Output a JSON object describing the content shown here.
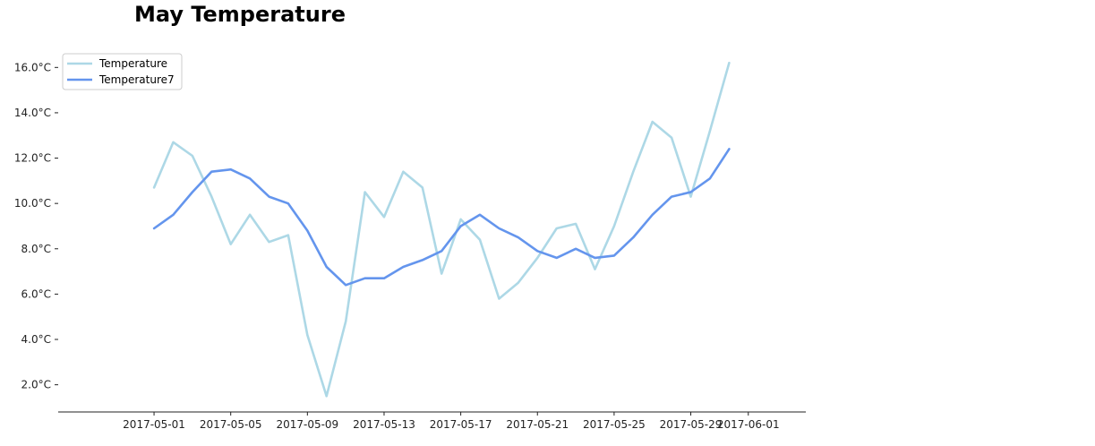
{
  "chart_data": {
    "type": "line",
    "title": "May Temperature",
    "xlabel": "",
    "ylabel": "",
    "x": [
      "2017-05-01",
      "2017-05-02",
      "2017-05-03",
      "2017-05-04",
      "2017-05-05",
      "2017-05-06",
      "2017-05-07",
      "2017-05-08",
      "2017-05-09",
      "2017-05-10",
      "2017-05-11",
      "2017-05-12",
      "2017-05-13",
      "2017-05-14",
      "2017-05-15",
      "2017-05-16",
      "2017-05-17",
      "2017-05-18",
      "2017-05-19",
      "2017-05-20",
      "2017-05-21",
      "2017-05-22",
      "2017-05-23",
      "2017-05-24",
      "2017-05-25",
      "2017-05-26",
      "2017-05-27",
      "2017-05-28",
      "2017-05-29",
      "2017-05-30",
      "2017-05-31"
    ],
    "series": [
      {
        "name": "Temperature",
        "color": "#add8e6",
        "values": [
          10.7,
          12.7,
          12.1,
          10.3,
          8.2,
          9.5,
          8.3,
          8.6,
          4.2,
          1.5,
          4.8,
          10.5,
          9.4,
          11.4,
          10.7,
          6.9,
          9.3,
          8.4,
          5.8,
          6.5,
          7.6,
          8.9,
          9.1,
          7.1,
          9.0,
          11.4,
          13.6,
          12.9,
          10.3,
          13.2,
          16.2
        ]
      },
      {
        "name": "Temperature7",
        "color": "#6495ed",
        "values": [
          8.9,
          9.5,
          10.5,
          11.4,
          11.5,
          11.1,
          10.3,
          10.0,
          8.8,
          7.2,
          6.4,
          6.7,
          6.7,
          7.2,
          7.5,
          7.9,
          9.0,
          9.5,
          8.9,
          8.5,
          7.9,
          7.6,
          8.0,
          7.6,
          7.7,
          8.5,
          9.5,
          10.3,
          10.5,
          11.1,
          12.4
        ]
      }
    ],
    "xlim": [
      "2017-04-26",
      "2017-06-04"
    ],
    "ylim": [
      0.8,
      17.0
    ],
    "yticks": [
      2.0,
      4.0,
      6.0,
      8.0,
      10.0,
      12.0,
      14.0,
      16.0
    ],
    "ytick_labels": [
      "2.0°C",
      "4.0°C",
      "6.0°C",
      "8.0°C",
      "10.0°C",
      "12.0°C",
      "14.0°C",
      "16.0°C"
    ],
    "xticks": [
      "2017-05-01",
      "2017-05-05",
      "2017-05-09",
      "2017-05-13",
      "2017-05-17",
      "2017-05-21",
      "2017-05-25",
      "2017-05-29",
      "2017-06-01"
    ],
    "xtick_labels": [
      "2017-05-01",
      "2017-05-05",
      "2017-05-09",
      "2017-05-13",
      "2017-05-17",
      "2017-05-21",
      "2017-05-25",
      "2017-05-29",
      "2017-06-01"
    ],
    "grid": false,
    "legend": {
      "position": "top-left",
      "entries": [
        "Temperature",
        "Temperature7"
      ]
    }
  }
}
